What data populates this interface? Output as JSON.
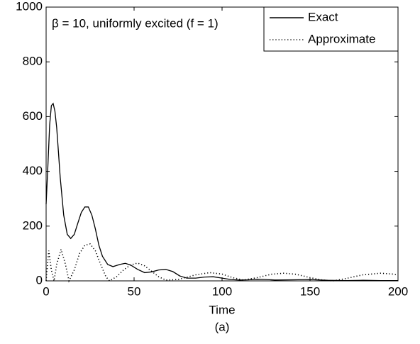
{
  "chart_data": {
    "type": "line",
    "annotation": "β = 10, uniformly excited (f = 1)",
    "xlabel": "Time",
    "caption": "(a)",
    "xlim": [
      0,
      200
    ],
    "xticks": [
      0,
      50,
      100,
      150,
      200
    ],
    "ylim": [
      0,
      1000
    ],
    "yticks": [
      0,
      200,
      400,
      600,
      800,
      1000
    ],
    "legend": "upper right",
    "series": [
      {
        "name": "Exact",
        "color": "#000000",
        "style": "solid",
        "x": [
          0,
          1,
          2,
          3,
          4,
          5,
          6,
          7,
          8,
          10,
          12,
          14,
          16,
          18,
          20,
          22,
          24,
          26,
          28,
          30,
          32,
          35,
          38,
          42,
          45,
          48,
          52,
          56,
          60,
          64,
          68,
          72,
          76,
          80,
          85,
          90,
          95,
          100,
          105,
          110,
          115,
          120,
          125,
          130,
          140,
          150,
          160,
          170,
          180,
          190,
          200
        ],
        "values": [
          280,
          420,
          570,
          640,
          648,
          620,
          560,
          470,
          380,
          240,
          170,
          155,
          170,
          210,
          250,
          270,
          270,
          240,
          190,
          130,
          90,
          60,
          52,
          60,
          64,
          58,
          42,
          30,
          33,
          40,
          42,
          34,
          18,
          10,
          10,
          14,
          15,
          10,
          5,
          3,
          4,
          6,
          5,
          3,
          4,
          5,
          2,
          1,
          2,
          1,
          1
        ]
      },
      {
        "name": "Approximate",
        "color": "#000000",
        "style": "dotted",
        "x": [
          0,
          1.5,
          3,
          4.5,
          6,
          8.5,
          11,
          13,
          16,
          19,
          22,
          25,
          28,
          31,
          34,
          36,
          40,
          44,
          48,
          52,
          56,
          60,
          64,
          68,
          75,
          85,
          93,
          100,
          106,
          112,
          120,
          128,
          135,
          142,
          150,
          157,
          163,
          170,
          180,
          190,
          197,
          200
        ],
        "values": [
          0,
          110,
          40,
          0,
          60,
          115,
          60,
          0,
          40,
          100,
          130,
          135,
          110,
          60,
          15,
          0,
          15,
          40,
          58,
          65,
          55,
          35,
          15,
          3,
          5,
          22,
          30,
          25,
          12,
          3,
          12,
          24,
          28,
          24,
          12,
          3,
          0,
          8,
          22,
          28,
          25,
          22
        ]
      }
    ]
  }
}
